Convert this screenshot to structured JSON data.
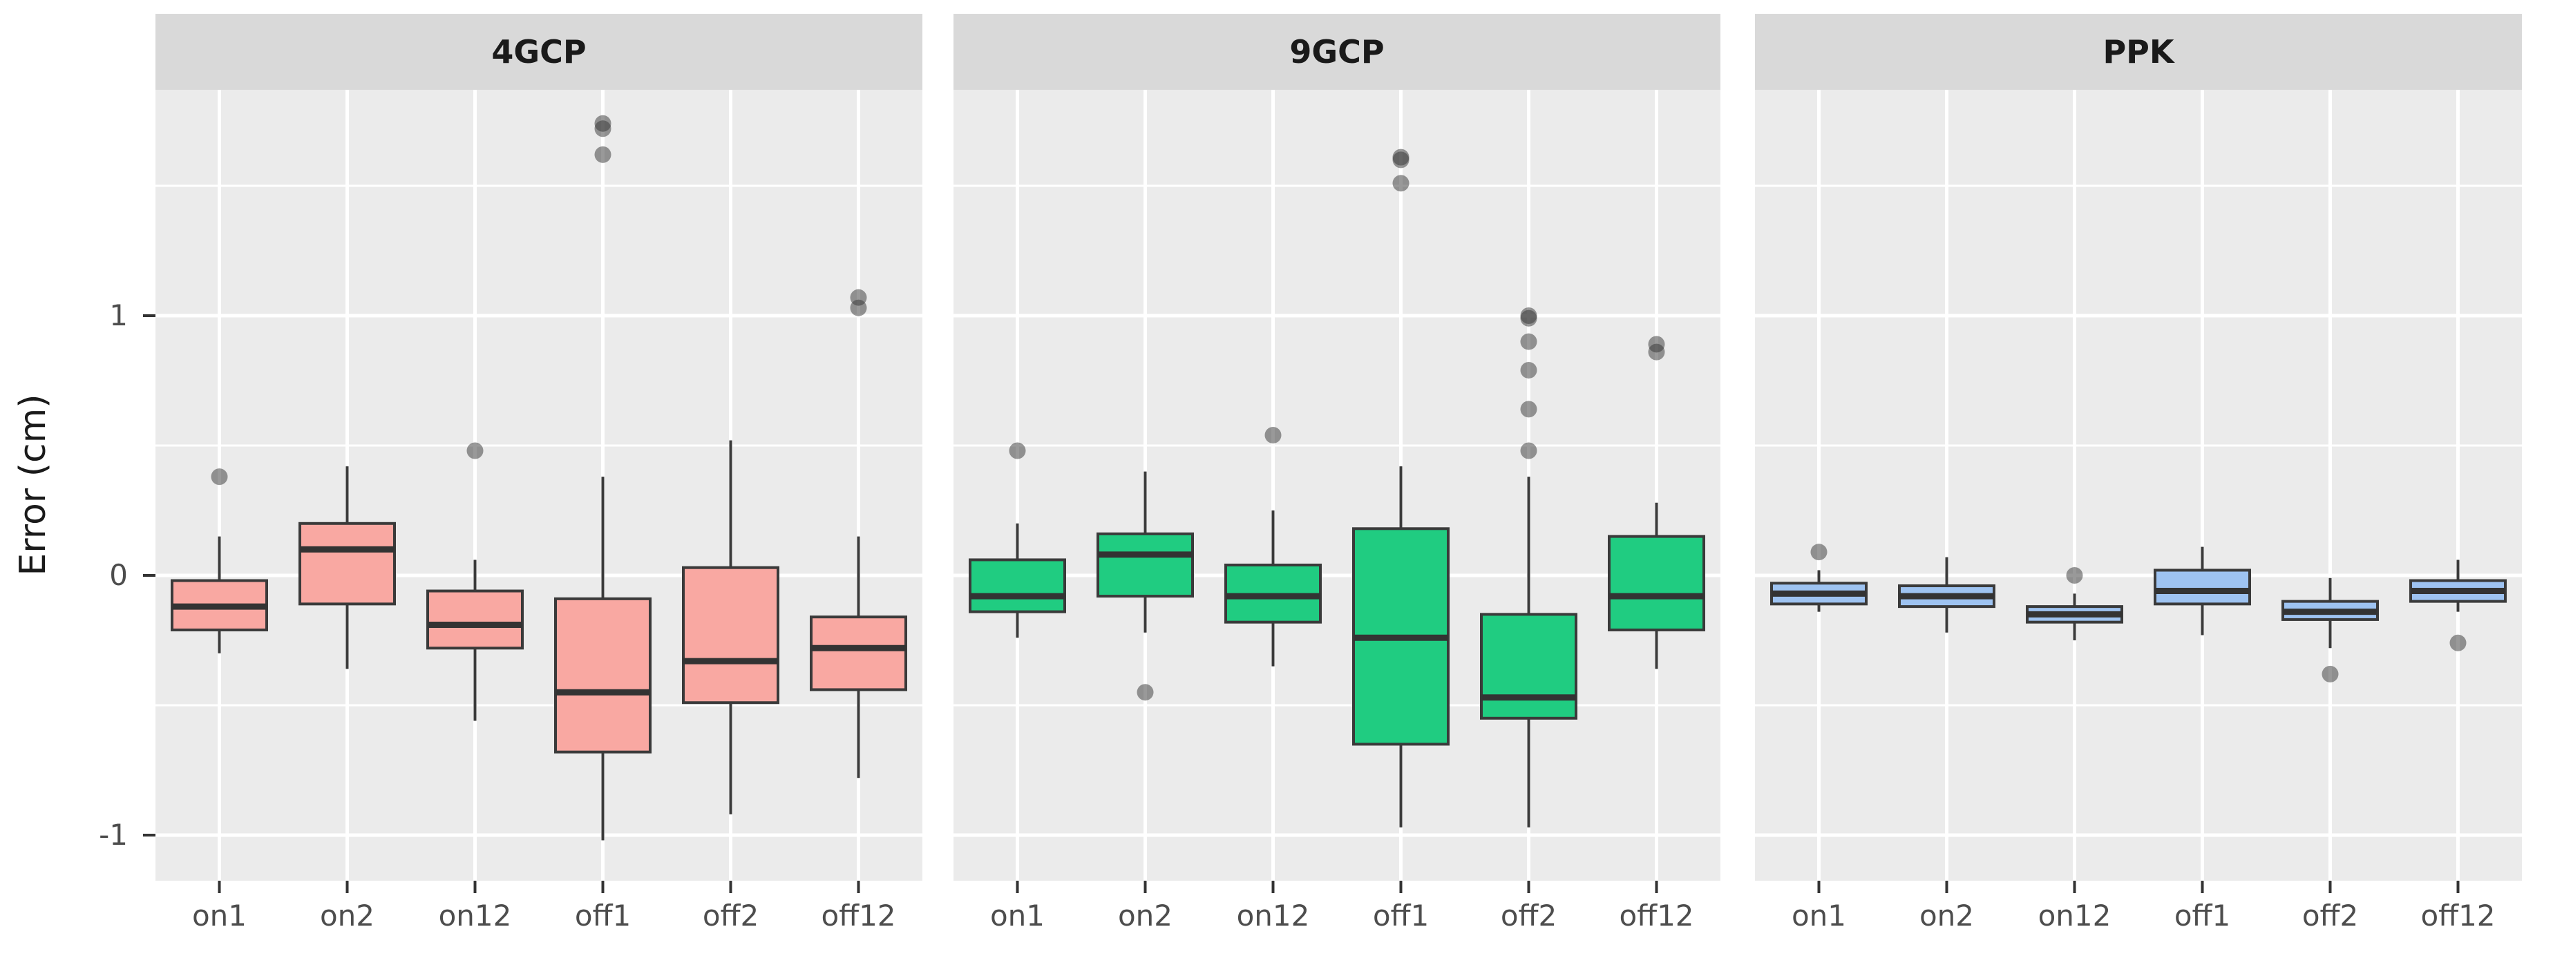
{
  "figure": {
    "background": "#FFFFFF",
    "panel_background": "#EBEBEB",
    "strip_background": "#D9D9D9",
    "gridline_color": "#FFFFFF",
    "box_outline_color": "#3A3A3A",
    "median_color": "#333333",
    "outlier_color": "#333333",
    "tick_label_color": "#4D4D4D",
    "axis_title_color": "#1A1A1A"
  },
  "chart_data": {
    "type": "boxplot",
    "title": "",
    "xlabel": "",
    "ylabel": "Error (cm)",
    "grid": "major and minor horizontal white gridlines, vertical gridline per category",
    "legend_position": "none",
    "ylim": [
      -1.18,
      1.87
    ],
    "y_ticks": [
      1,
      0,
      -1
    ],
    "y_tick_labels": [
      "1",
      "0",
      "-1"
    ],
    "y_minor_gridlines": [
      1.5,
      0.5,
      -0.5
    ],
    "categories": [
      "on1",
      "on2",
      "on12",
      "off1",
      "off2",
      "off12"
    ],
    "panels": [
      {
        "label": "4GCP",
        "fill": "#F9A8A2",
        "boxes": [
          {
            "category": "on1",
            "low": -0.3,
            "q1": -0.21,
            "median": -0.12,
            "q3": -0.02,
            "high": 0.15,
            "outliers": [
              0.38
            ]
          },
          {
            "category": "on2",
            "low": -0.36,
            "q1": -0.11,
            "median": 0.1,
            "q3": 0.2,
            "high": 0.42,
            "outliers": []
          },
          {
            "category": "on12",
            "low": -0.56,
            "q1": -0.28,
            "median": -0.19,
            "q3": -0.06,
            "high": 0.06,
            "outliers": [
              0.48
            ]
          },
          {
            "category": "off1",
            "low": -1.02,
            "q1": -0.68,
            "median": -0.45,
            "q3": -0.09,
            "high": 0.38,
            "outliers": [
              1.74,
              1.72,
              1.62
            ]
          },
          {
            "category": "off2",
            "low": -0.92,
            "q1": -0.49,
            "median": -0.33,
            "q3": 0.03,
            "high": 0.52,
            "outliers": []
          },
          {
            "category": "off12",
            "low": -0.78,
            "q1": -0.44,
            "median": -0.28,
            "q3": -0.16,
            "high": 0.15,
            "outliers": [
              1.07,
              1.03
            ]
          }
        ]
      },
      {
        "label": "9GCP",
        "fill": "#20CC81",
        "boxes": [
          {
            "category": "on1",
            "low": -0.24,
            "q1": -0.14,
            "median": -0.08,
            "q3": 0.06,
            "high": 0.2,
            "outliers": [
              0.48
            ]
          },
          {
            "category": "on2",
            "low": -0.22,
            "q1": -0.08,
            "median": 0.08,
            "q3": 0.16,
            "high": 0.4,
            "outliers": [
              -0.45
            ]
          },
          {
            "category": "on12",
            "low": -0.35,
            "q1": -0.18,
            "median": -0.08,
            "q3": 0.04,
            "high": 0.25,
            "outliers": [
              0.54
            ]
          },
          {
            "category": "off1",
            "low": -0.97,
            "q1": -0.65,
            "median": -0.24,
            "q3": 0.18,
            "high": 0.42,
            "outliers": [
              1.61,
              1.6,
              1.51
            ]
          },
          {
            "category": "off2",
            "low": -0.97,
            "q1": -0.55,
            "median": -0.47,
            "q3": -0.15,
            "high": 0.38,
            "outliers": [
              1.0,
              0.99,
              0.9,
              0.79,
              0.64,
              0.48
            ]
          },
          {
            "category": "off12",
            "low": -0.36,
            "q1": -0.21,
            "median": -0.08,
            "q3": 0.15,
            "high": 0.28,
            "outliers": [
              0.89,
              0.86
            ]
          }
        ]
      },
      {
        "label": "PPK",
        "fill": "#9EC3F1",
        "boxes": [
          {
            "category": "on1",
            "low": -0.14,
            "q1": -0.11,
            "median": -0.07,
            "q3": -0.03,
            "high": 0.02,
            "outliers": [
              0.09
            ]
          },
          {
            "category": "on2",
            "low": -0.22,
            "q1": -0.12,
            "median": -0.08,
            "q3": -0.04,
            "high": 0.07,
            "outliers": []
          },
          {
            "category": "on12",
            "low": -0.25,
            "q1": -0.18,
            "median": -0.15,
            "q3": -0.12,
            "high": -0.07,
            "outliers": [
              0.0
            ]
          },
          {
            "category": "off1",
            "low": -0.23,
            "q1": -0.11,
            "median": -0.06,
            "q3": 0.02,
            "high": 0.11,
            "outliers": []
          },
          {
            "category": "off2",
            "low": -0.28,
            "q1": -0.17,
            "median": -0.14,
            "q3": -0.1,
            "high": -0.01,
            "outliers": [
              -0.38
            ]
          },
          {
            "category": "off12",
            "low": -0.14,
            "q1": -0.1,
            "median": -0.06,
            "q3": -0.02,
            "high": 0.06,
            "outliers": [
              -0.26
            ]
          }
        ]
      }
    ]
  }
}
